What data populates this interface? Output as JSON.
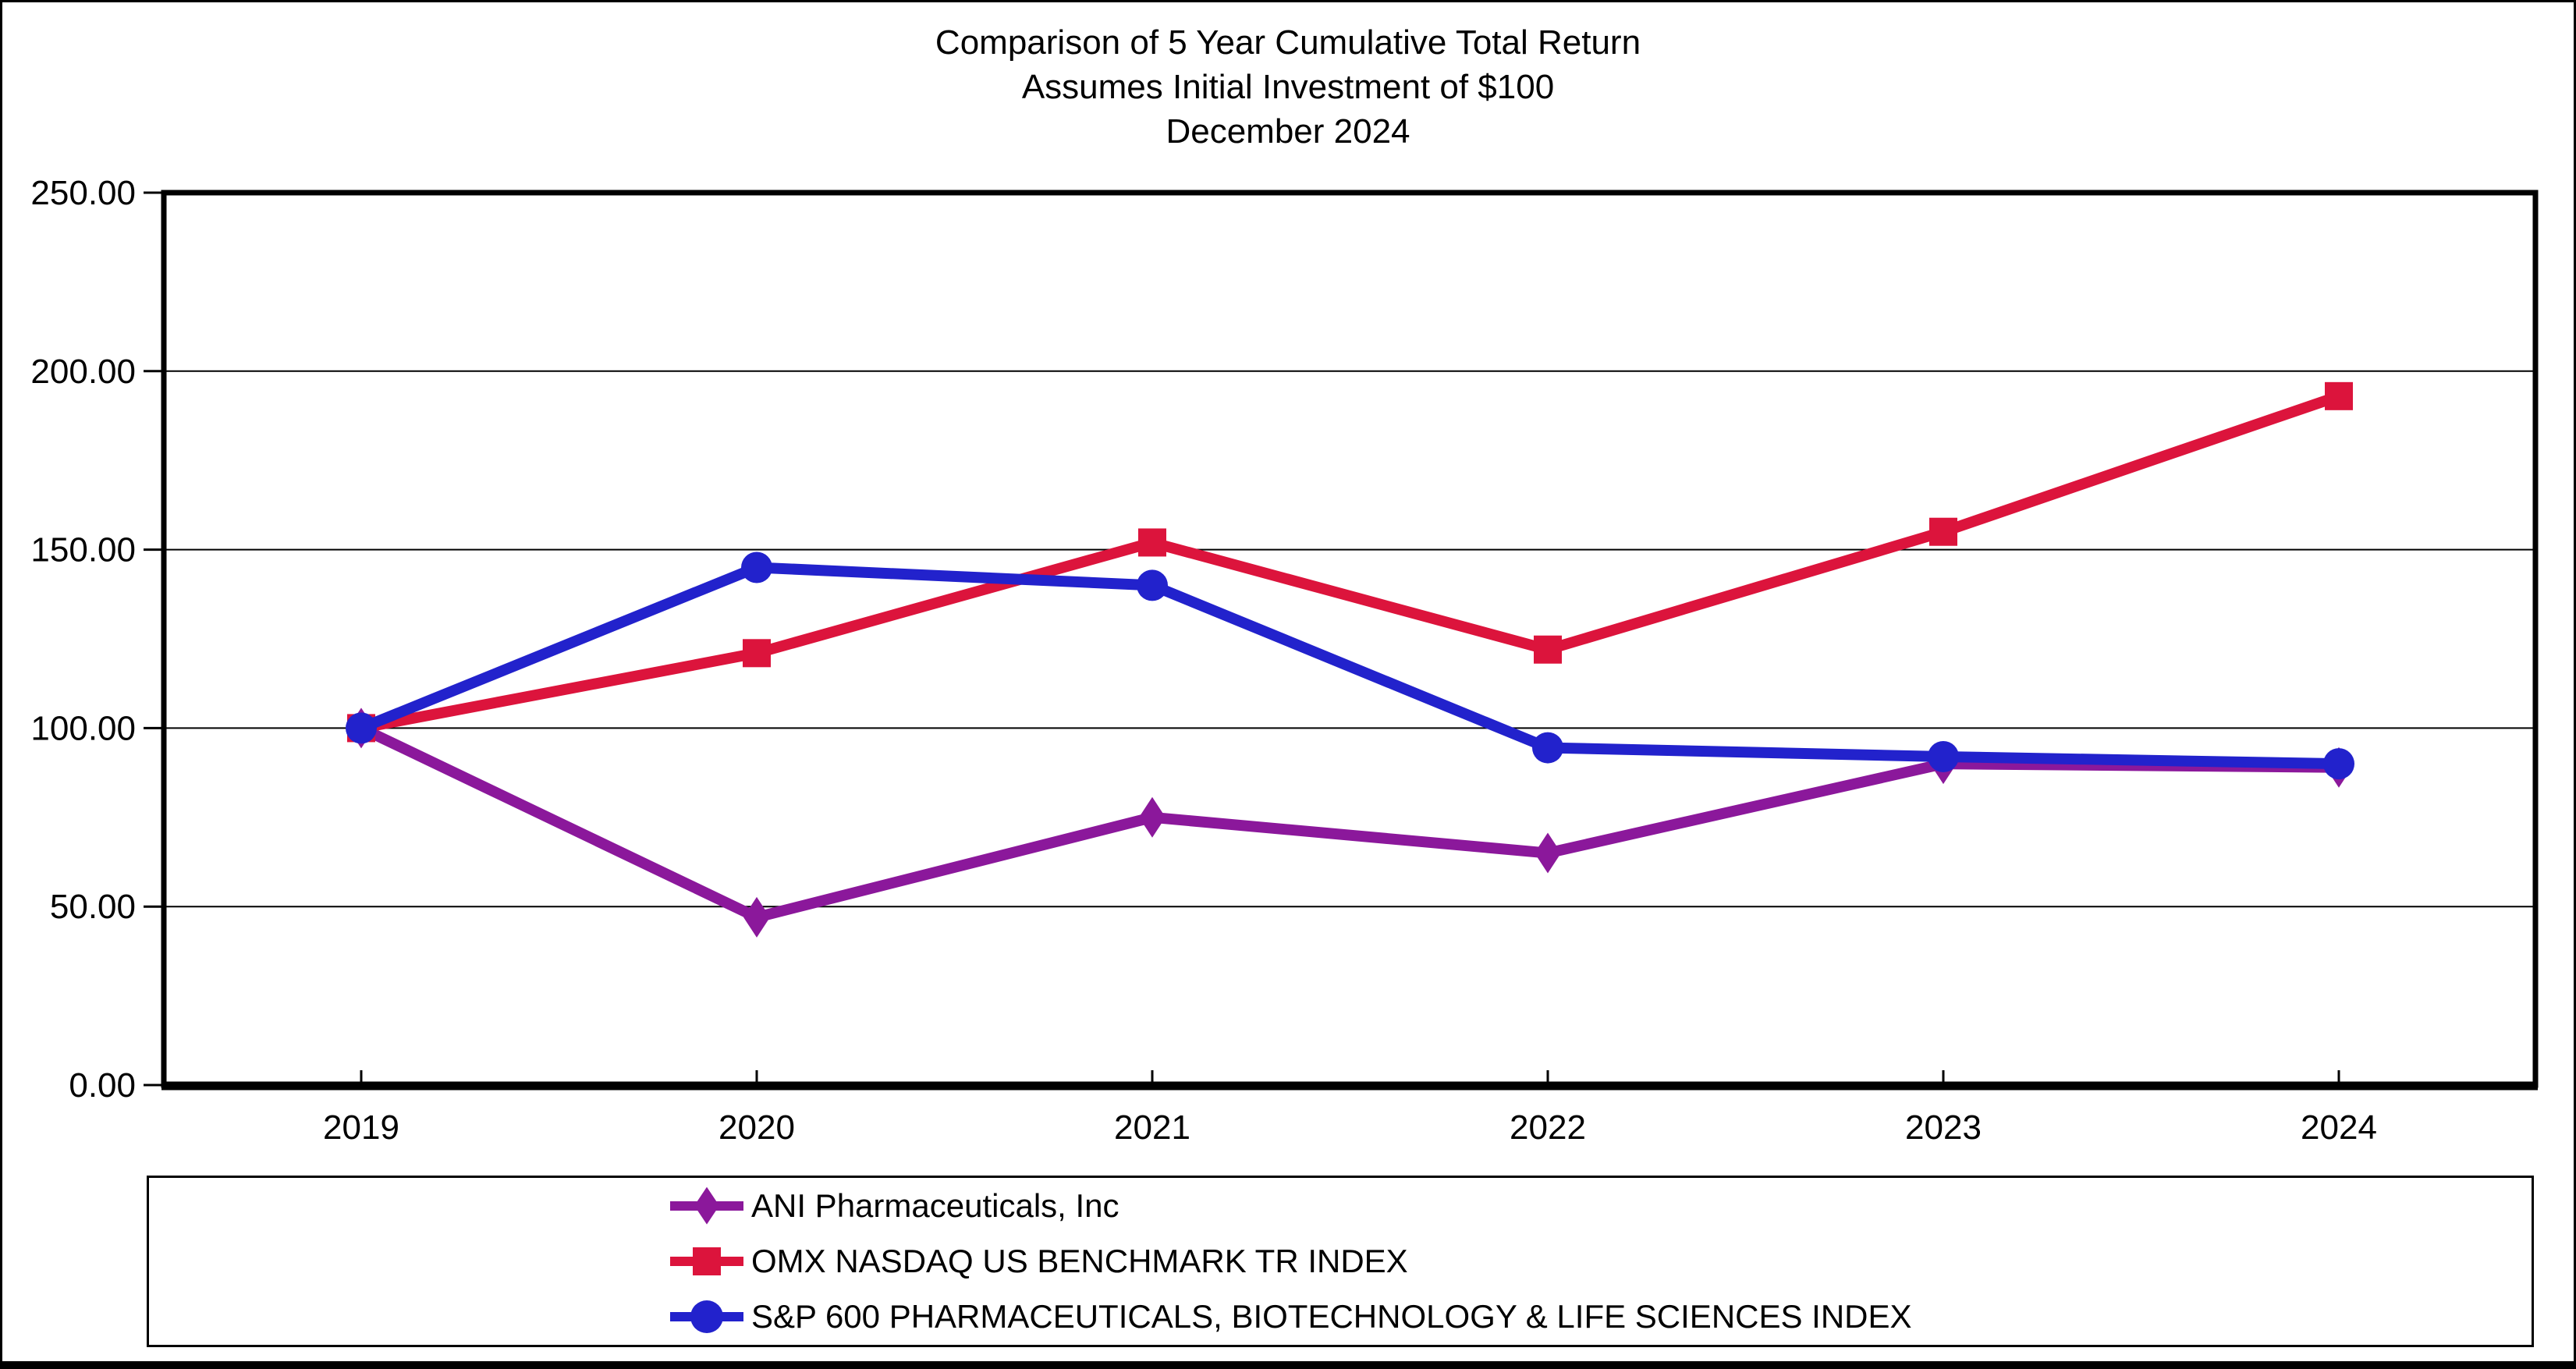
{
  "title": {
    "line1": "Comparison of 5 Year Cumulative Total Return",
    "line2": "Assumes Initial Investment of $100",
    "line3": "December 2024"
  },
  "chart_data": {
    "type": "line",
    "x_categories": [
      "2019",
      "2020",
      "2021",
      "2022",
      "2023",
      "2024"
    ],
    "y_ticks": [
      0,
      50,
      100,
      150,
      200,
      250
    ],
    "y_tick_labels": [
      "0.00",
      "50.00",
      "100.00",
      "150.00",
      "200.00",
      "250.00"
    ],
    "ylim": [
      0,
      250
    ],
    "grid": "horizontal",
    "legend_position": "bottom",
    "series": [
      {
        "name": "ANI Pharmaceuticals, Inc",
        "color": "#8B189B",
        "marker": "diamond",
        "values": [
          100,
          47,
          75,
          65,
          90,
          89
        ]
      },
      {
        "name": "OMX NASDAQ US BENCHMARK TR INDEX",
        "color": "#DC143C",
        "marker": "square",
        "values": [
          100,
          121,
          152,
          122,
          155,
          193
        ]
      },
      {
        "name": "S&P 600 PHARMACEUTICALS, BIOTECHNOLOGY & LIFE SCIENCES INDEX",
        "color": "#2222CC",
        "marker": "circle",
        "values": [
          100,
          145,
          140,
          94.5,
          92,
          90
        ]
      }
    ]
  }
}
